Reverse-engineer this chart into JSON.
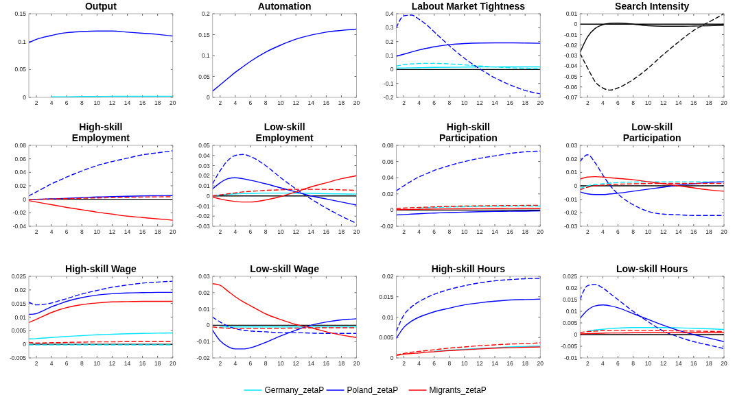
{
  "chart_data": [
    {
      "type": "line",
      "title": "Output",
      "x": [
        1,
        2,
        3,
        4,
        5,
        6,
        8,
        10,
        12,
        14,
        16,
        18,
        20
      ],
      "xlim": [
        1,
        20
      ],
      "xticks": [
        2,
        4,
        6,
        8,
        10,
        12,
        14,
        16,
        18,
        20
      ],
      "ylim": [
        0,
        0.15
      ],
      "yticks": [
        0,
        0.05,
        0.1,
        0.15
      ],
      "grid": false,
      "series": [
        {
          "color": "#00e5ff",
          "line_style": "solid",
          "values": [
            null,
            null,
            null,
            0.001,
            0.001,
            0.001,
            0.0015,
            0.0015,
            0.002,
            0.002,
            0.002,
            0.002,
            0.002
          ]
        },
        {
          "color": "#0000ff",
          "line_style": "solid",
          "values": [
            0.098,
            0.104,
            0.108,
            0.111,
            0.114,
            0.116,
            0.118,
            0.119,
            0.119,
            0.117,
            0.115,
            0.113,
            0.11
          ]
        }
      ]
    },
    {
      "type": "line",
      "title": "Automation",
      "x": [
        1,
        2,
        3,
        4,
        5,
        6,
        8,
        10,
        12,
        14,
        16,
        18,
        20
      ],
      "xlim": [
        1,
        20
      ],
      "xticks": [
        2,
        4,
        6,
        8,
        10,
        12,
        14,
        16,
        18,
        20
      ],
      "ylim": [
        0,
        0.2
      ],
      "yticks": [
        0,
        0.05,
        0.1,
        0.15,
        0.2
      ],
      "grid": false,
      "series": [
        {
          "color": "#0000ff",
          "line_style": "solid",
          "values": [
            0.015,
            0.03,
            0.045,
            0.06,
            0.073,
            0.086,
            0.108,
            0.125,
            0.139,
            0.149,
            0.156,
            0.16,
            0.163
          ]
        }
      ]
    },
    {
      "type": "line",
      "title": "Labout Market Tightness",
      "x": [
        1,
        2,
        3,
        4,
        5,
        6,
        8,
        10,
        12,
        14,
        16,
        18,
        20
      ],
      "xlim": [
        1,
        20
      ],
      "xticks": [
        2,
        4,
        6,
        8,
        10,
        12,
        14,
        16,
        18,
        20
      ],
      "ylim": [
        -0.2,
        0.4
      ],
      "yticks": [
        -0.2,
        -0.1,
        0,
        0.1,
        0.2,
        0.3,
        0.4
      ],
      "grid": false,
      "ref_lines": [
        {
          "axis": "y",
          "value": 0,
          "color": "#000000"
        }
      ],
      "series": [
        {
          "color": "#00e5ff",
          "line_style": "solid",
          "values": [
            0.01,
            0.011,
            0.012,
            0.013,
            0.014,
            0.015,
            0.016,
            0.017,
            0.018,
            0.018,
            0.019,
            0.019,
            0.019
          ]
        },
        {
          "color": "#00e5ff",
          "line_style": "dashed",
          "values": [
            0.025,
            0.035,
            0.04,
            0.043,
            0.044,
            0.044,
            0.04,
            0.033,
            0.025,
            0.018,
            0.013,
            0.009,
            0.006
          ]
        },
        {
          "color": "#0000ff",
          "line_style": "solid",
          "values": [
            0.095,
            0.11,
            0.125,
            0.14,
            0.152,
            0.163,
            0.178,
            0.186,
            0.19,
            0.191,
            0.191,
            0.19,
            0.188
          ]
        },
        {
          "color": "#0000ff",
          "line_style": "dashed",
          "values": [
            0.3,
            0.385,
            0.39,
            0.36,
            0.32,
            0.27,
            0.17,
            0.08,
            0.005,
            -0.06,
            -0.11,
            -0.15,
            -0.175
          ]
        }
      ]
    },
    {
      "type": "line",
      "title": "Search Intensity",
      "x": [
        1,
        2,
        3,
        4,
        5,
        6,
        8,
        10,
        12,
        14,
        16,
        18,
        20
      ],
      "xlim": [
        1,
        20
      ],
      "xticks": [
        2,
        4,
        6,
        8,
        10,
        12,
        14,
        16,
        18,
        20
      ],
      "ylim": [
        -0.07,
        0.01
      ],
      "yticks": [
        -0.07,
        -0.06,
        -0.05,
        -0.04,
        -0.03,
        -0.02,
        -0.01,
        0,
        0.01
      ],
      "grid": false,
      "ref_lines": [
        {
          "axis": "y",
          "value": 0,
          "color": "#000000"
        }
      ],
      "series": [
        {
          "color": "#000000",
          "line_style": "solid",
          "values": [
            -0.027,
            -0.012,
            -0.004,
            -0.0005,
            0.0008,
            0.001,
            0,
            -0.0015,
            -0.002,
            -0.002,
            -0.0018,
            -0.0015,
            -0.001
          ]
        },
        {
          "color": "#000000",
          "line_style": "dashed",
          "values": [
            -0.028,
            -0.042,
            -0.055,
            -0.061,
            -0.063,
            -0.061,
            -0.053,
            -0.042,
            -0.029,
            -0.017,
            -0.006,
            0.002,
            0.01
          ]
        }
      ]
    },
    {
      "type": "line",
      "title": "High-skill\nEmployment",
      "x": [
        1,
        2,
        3,
        4,
        5,
        6,
        8,
        10,
        12,
        14,
        16,
        18,
        20
      ],
      "xlim": [
        1,
        20
      ],
      "xticks": [
        2,
        4,
        6,
        8,
        10,
        12,
        14,
        16,
        18,
        20
      ],
      "ylim": [
        -0.04,
        0.08
      ],
      "yticks": [
        -0.04,
        -0.02,
        0,
        0.02,
        0.04,
        0.06,
        0.08
      ],
      "grid": false,
      "ref_lines": [
        {
          "axis": "y",
          "value": 0,
          "color": "#000000"
        }
      ],
      "series": [
        {
          "color": "#0000ff",
          "line_style": "solid",
          "values": [
            0,
            0,
            0.0003,
            0.0007,
            0.001,
            0.0015,
            0.0025,
            0.0035,
            0.004,
            0.0045,
            0.005,
            0.0053,
            0.0055
          ]
        },
        {
          "color": "#0000ff",
          "line_style": "dashed",
          "values": [
            0.005,
            0.011,
            0.017,
            0.023,
            0.028,
            0.033,
            0.042,
            0.05,
            0.056,
            0.061,
            0.066,
            0.069,
            0.072
          ]
        },
        {
          "color": "#ff0000",
          "line_style": "solid",
          "values": [
            -0.002,
            -0.004,
            -0.006,
            -0.008,
            -0.01,
            -0.012,
            -0.0155,
            -0.019,
            -0.022,
            -0.025,
            -0.027,
            -0.029,
            -0.031
          ]
        },
        {
          "color": "#ff0000",
          "line_style": "dashed",
          "values": [
            0,
            0,
            0.0003,
            0.0005,
            0.0008,
            0.001,
            0.0015,
            0.002,
            0.0025,
            0.003,
            0.0033,
            0.0036,
            0.0038
          ]
        }
      ]
    },
    {
      "type": "line",
      "title": "Low-skill\nEmployment",
      "x": [
        1,
        2,
        3,
        4,
        5,
        6,
        8,
        10,
        12,
        14,
        16,
        18,
        20
      ],
      "xlim": [
        1,
        20
      ],
      "xticks": [
        2,
        4,
        6,
        8,
        10,
        12,
        14,
        16,
        18,
        20
      ],
      "ylim": [
        -0.03,
        0.05
      ],
      "yticks": [
        -0.03,
        -0.02,
        -0.01,
        0,
        0.01,
        0.02,
        0.03,
        0.04,
        0.05
      ],
      "grid": false,
      "ref_lines": [
        {
          "axis": "y",
          "value": 0,
          "color": "#000000"
        }
      ],
      "series": [
        {
          "color": "#00e5ff",
          "line_style": "solid",
          "values": [
            0,
            0.0008,
            0.0015,
            0.002,
            0.0023,
            0.0025,
            0.0028,
            0.0028,
            0.0027,
            0.0025,
            0.0022,
            0.002,
            0.0018
          ]
        },
        {
          "color": "#0000ff",
          "line_style": "solid",
          "values": [
            0.007,
            0.013,
            0.017,
            0.018,
            0.017,
            0.0155,
            0.012,
            0.008,
            0.004,
            0,
            -0.003,
            -0.006,
            -0.009
          ]
        },
        {
          "color": "#0000ff",
          "line_style": "dashed",
          "values": [
            0.012,
            0.025,
            0.035,
            0.04,
            0.041,
            0.039,
            0.03,
            0.018,
            0.007,
            -0.003,
            -0.012,
            -0.02,
            -0.027
          ]
        },
        {
          "color": "#ff0000",
          "line_style": "solid",
          "values": [
            -0.001,
            -0.003,
            -0.0045,
            -0.0055,
            -0.006,
            -0.006,
            -0.004,
            -0.0005,
            0.004,
            0.009,
            0.013,
            0.017,
            0.02
          ]
        },
        {
          "color": "#ff0000",
          "line_style": "dashed",
          "values": [
            0,
            0.001,
            0.002,
            0.003,
            0.004,
            0.0045,
            0.0055,
            0.006,
            0.0065,
            0.0065,
            0.0065,
            0.006,
            0.0055
          ]
        }
      ]
    },
    {
      "type": "line",
      "title": "High-skill\nParticipation",
      "x": [
        1,
        2,
        3,
        4,
        5,
        6,
        8,
        10,
        12,
        14,
        16,
        18,
        20
      ],
      "xlim": [
        1,
        20
      ],
      "xticks": [
        2,
        4,
        6,
        8,
        10,
        12,
        14,
        16,
        18,
        20
      ],
      "ylim": [
        -0.02,
        0.08
      ],
      "yticks": [
        -0.02,
        0,
        0.02,
        0.04,
        0.06,
        0.08
      ],
      "grid": false,
      "ref_lines": [
        {
          "axis": "y",
          "value": 0,
          "color": "#000000"
        }
      ],
      "series": [
        {
          "color": "#00e5ff",
          "line_style": "dashed",
          "values": [
            null,
            null,
            null,
            0.0025,
            0.003,
            0.0033,
            0.0038,
            0.0042,
            0.0045,
            0.0047,
            0.0049,
            0.005,
            0.005
          ]
        },
        {
          "color": "#0000ff",
          "line_style": "solid",
          "values": [
            -0.006,
            -0.0055,
            -0.005,
            -0.0045,
            -0.004,
            -0.0037,
            -0.003,
            -0.0025,
            -0.002,
            -0.0017,
            -0.0015,
            -0.0013,
            -0.001
          ]
        },
        {
          "color": "#0000ff",
          "line_style": "dashed",
          "values": [
            0.024,
            0.03,
            0.036,
            0.041,
            0.045,
            0.049,
            0.055,
            0.06,
            0.064,
            0.067,
            0.07,
            0.072,
            0.073
          ]
        },
        {
          "color": "#ff0000",
          "line_style": "solid",
          "values": [
            0.0005,
            0.0007,
            0.0009,
            0.001,
            0.0012,
            0.0013,
            0.0015,
            0.0016,
            0.0017,
            0.0018,
            0.0019,
            0.002,
            0.002
          ]
        },
        {
          "color": "#ff0000",
          "line_style": "dashed",
          "values": [
            0.002,
            0.0025,
            0.003,
            0.0033,
            0.0036,
            0.004,
            0.0045,
            0.005,
            0.0052,
            0.0055,
            0.0057,
            0.0058,
            0.006
          ]
        }
      ]
    },
    {
      "type": "line",
      "title": "Low-skill\nParticipation",
      "x": [
        1,
        2,
        3,
        4,
        5,
        6,
        8,
        10,
        12,
        14,
        16,
        18,
        20
      ],
      "xlim": [
        1,
        20
      ],
      "xticks": [
        2,
        4,
        6,
        8,
        10,
        12,
        14,
        16,
        18,
        20
      ],
      "ylim": [
        -0.03,
        0.03
      ],
      "yticks": [
        -0.03,
        -0.02,
        -0.01,
        0,
        0.01,
        0.02,
        0.03
      ],
      "grid": false,
      "ref_lines": [
        {
          "axis": "y",
          "value": 0,
          "color": "#000000"
        }
      ],
      "series": [
        {
          "color": "#00e5ff",
          "line_style": "dashed",
          "values": [
            -0.002,
            0,
            0.001,
            0.0015,
            0.002,
            0.0025,
            0.0028,
            0.003,
            0.003,
            0.003,
            0.003,
            0.003,
            0.003
          ]
        },
        {
          "color": "#0000ff",
          "line_style": "solid",
          "values": [
            -0.0045,
            -0.006,
            -0.0065,
            -0.0065,
            -0.006,
            -0.0055,
            -0.004,
            -0.0025,
            -0.001,
            0.0005,
            0.0015,
            0.0025,
            0.003
          ]
        },
        {
          "color": "#0000ff",
          "line_style": "dashed",
          "values": [
            0.018,
            0.023,
            0.017,
            0.008,
            0,
            -0.006,
            -0.014,
            -0.019,
            -0.021,
            -0.0215,
            -0.022,
            -0.022,
            -0.022
          ]
        },
        {
          "color": "#ff0000",
          "line_style": "solid",
          "values": [
            0.005,
            0.0065,
            0.0068,
            0.0065,
            0.006,
            0.0055,
            0.0045,
            0.003,
            0.0015,
            0,
            -0.0015,
            -0.003,
            -0.004
          ]
        },
        {
          "color": "#ff0000",
          "line_style": "dashed",
          "values": [
            -0.003,
            -0.001,
            0,
            0.0005,
            0.001,
            0.0012,
            0.0015,
            0.0017,
            0.0018,
            0.0018,
            0.0018,
            0.0018,
            0.0018
          ]
        }
      ]
    },
    {
      "type": "line",
      "title": "High-skill Wage",
      "x": [
        1,
        2,
        3,
        4,
        5,
        6,
        8,
        10,
        12,
        14,
        16,
        18,
        20
      ],
      "xlim": [
        1,
        20
      ],
      "xticks": [
        2,
        4,
        6,
        8,
        10,
        12,
        14,
        16,
        18,
        20
      ],
      "ylim": [
        -0.005,
        0.025
      ],
      "yticks": [
        -0.005,
        0,
        0.005,
        0.01,
        0.015,
        0.02,
        0.025
      ],
      "grid": false,
      "ref_lines": [
        {
          "axis": "y",
          "value": 0,
          "color": "#000000"
        }
      ],
      "series": [
        {
          "color": "#00e5ff",
          "line_style": "solid",
          "values": [
            0.002,
            0.0021,
            0.0023,
            0.0025,
            0.0027,
            0.0029,
            0.0032,
            0.0035,
            0.0037,
            0.0039,
            0.004,
            0.0041,
            0.0042
          ]
        },
        {
          "color": "#00e5ff",
          "line_style": "dashed",
          "values": [
            -0.0002,
            -0.0002,
            -0.0002,
            -0.0002,
            -0.0002,
            -0.0002,
            -0.0002,
            -0.0002,
            -0.0002,
            -0.0002,
            -0.0002,
            -0.0002,
            -0.0002
          ]
        },
        {
          "color": "#0000ff",
          "line_style": "solid",
          "values": [
            0.011,
            0.0113,
            0.0125,
            0.0138,
            0.0148,
            0.0158,
            0.0172,
            0.0181,
            0.0186,
            0.0189,
            0.019,
            0.0191,
            0.0191
          ]
        },
        {
          "color": "#0000ff",
          "line_style": "dashed",
          "values": [
            0.0155,
            0.0145,
            0.0147,
            0.0152,
            0.016,
            0.0168,
            0.0185,
            0.0198,
            0.021,
            0.0218,
            0.0225,
            0.0229,
            0.0232
          ]
        },
        {
          "color": "#ff0000",
          "line_style": "solid",
          "values": [
            0.008,
            0.0092,
            0.0105,
            0.0117,
            0.0127,
            0.0135,
            0.0146,
            0.0152,
            0.0156,
            0.0157,
            0.0158,
            0.0158,
            0.0158
          ]
        },
        {
          "color": "#ff0000",
          "line_style": "dashed",
          "values": [
            0.0007,
            0.0005,
            0.0005,
            0.0006,
            0.0006,
            0.0007,
            0.0008,
            0.0009,
            0.0009,
            0.001,
            0.001,
            0.001,
            0.001
          ]
        }
      ]
    },
    {
      "type": "line",
      "title": "Low-skill Wage",
      "x": [
        1,
        2,
        3,
        4,
        5,
        6,
        8,
        10,
        12,
        14,
        16,
        18,
        20
      ],
      "xlim": [
        1,
        20
      ],
      "xticks": [
        2,
        4,
        6,
        8,
        10,
        12,
        14,
        16,
        18,
        20
      ],
      "ylim": [
        -0.02,
        0.03
      ],
      "yticks": [
        -0.02,
        -0.01,
        0,
        0.01,
        0.02,
        0.03
      ],
      "grid": false,
      "ref_lines": [
        {
          "axis": "y",
          "value": 0,
          "color": "#000000"
        }
      ],
      "series": [
        {
          "color": "#00e5ff",
          "line_style": "solid",
          "values": [
            null,
            -0.001,
            -0.001,
            -0.001,
            -0.001,
            -0.001,
            -0.001,
            -0.001,
            -0.001,
            -0.001,
            -0.001,
            -0.001,
            -0.001
          ]
        },
        {
          "color": "#0000ff",
          "line_style": "solid",
          "values": [
            -0.003,
            -0.0095,
            -0.013,
            -0.0145,
            -0.0145,
            -0.0138,
            -0.0105,
            -0.0065,
            -0.003,
            0,
            0.002,
            0.0033,
            0.004
          ]
        },
        {
          "color": "#0000ff",
          "line_style": "dashed",
          "values": [
            0.005,
            0.002,
            -0.0005,
            -0.002,
            -0.003,
            -0.0035,
            -0.004,
            -0.0045,
            -0.0045,
            -0.0048,
            -0.005,
            -0.005,
            -0.005
          ]
        },
        {
          "color": "#ff0000",
          "line_style": "solid",
          "values": [
            0.0255,
            0.0245,
            0.021,
            0.0175,
            0.0145,
            0.012,
            0.007,
            0.0035,
            0.0005,
            -0.0015,
            -0.004,
            -0.006,
            -0.0075
          ]
        },
        {
          "color": "#ff0000",
          "line_style": "dashed",
          "values": [
            -0.001,
            -0.0015,
            -0.0018,
            -0.002,
            -0.002,
            -0.002,
            -0.002,
            -0.0018,
            -0.0017,
            -0.0016,
            -0.0015,
            -0.0015,
            -0.0015
          ]
        }
      ]
    },
    {
      "type": "line",
      "title": "High-skill Hours",
      "x": [
        1,
        2,
        3,
        4,
        5,
        6,
        8,
        10,
        12,
        14,
        16,
        18,
        20
      ],
      "xlim": [
        1,
        20
      ],
      "xticks": [
        2,
        4,
        6,
        8,
        10,
        12,
        14,
        16,
        18,
        20
      ],
      "ylim": [
        0,
        0.02
      ],
      "yticks": [
        0,
        0.005,
        0.01,
        0.015,
        0.02
      ],
      "grid": false,
      "series": [
        {
          "color": "#00e5ff",
          "line_style": "solid",
          "values": [
            null,
            null,
            null,
            null,
            null,
            0.0016,
            0.0019,
            0.0021,
            0.0023,
            0.0025,
            0.0027,
            0.0028,
            0.0029
          ]
        },
        {
          "color": "#0000ff",
          "line_style": "solid",
          "values": [
            0.0048,
            0.0075,
            0.009,
            0.01,
            0.0107,
            0.0113,
            0.0122,
            0.013,
            0.0135,
            0.0139,
            0.0142,
            0.0143,
            0.0144
          ]
        },
        {
          "color": "#0000ff",
          "line_style": "dashed",
          "values": [
            0.0065,
            0.0105,
            0.0125,
            0.0138,
            0.0148,
            0.0156,
            0.0168,
            0.0177,
            0.0184,
            0.0189,
            0.0192,
            0.0194,
            0.0195
          ]
        },
        {
          "color": "#ff0000",
          "line_style": "solid",
          "values": [
            0.0006,
            0.0009,
            0.0011,
            0.0012,
            0.0014,
            0.0015,
            0.0018,
            0.002,
            0.0022,
            0.0024,
            0.0025,
            0.0026,
            0.0027
          ]
        },
        {
          "color": "#ff0000",
          "line_style": "dashed",
          "values": [
            0.0007,
            0.0011,
            0.0014,
            0.0016,
            0.0018,
            0.002,
            0.0024,
            0.0027,
            0.003,
            0.0032,
            0.0034,
            0.0035,
            0.0037
          ]
        }
      ]
    },
    {
      "type": "line",
      "title": "Low-skill Hours",
      "x": [
        1,
        2,
        3,
        4,
        5,
        6,
        8,
        10,
        12,
        14,
        16,
        18,
        20
      ],
      "xlim": [
        1,
        20
      ],
      "xticks": [
        2,
        4,
        6,
        8,
        10,
        12,
        14,
        16,
        18,
        20
      ],
      "ylim": [
        -0.01,
        0.025
      ],
      "yticks": [
        -0.01,
        -0.005,
        0,
        0.005,
        0.01,
        0.015,
        0.02,
        0.025
      ],
      "grid": false,
      "legend": "bottom",
      "ref_lines": [
        {
          "axis": "y",
          "value": 0,
          "color": "#000000"
        }
      ],
      "series": [
        {
          "name": "Germany_zetaP",
          "color": "#00e5ff",
          "line_style": "solid",
          "values": [
            null,
            0.0015,
            0.002,
            0.0023,
            0.0026,
            0.0028,
            0.003,
            0.003,
            0.003,
            0.0029,
            0.0027,
            0.0025,
            0.0022
          ]
        },
        {
          "name": "Poland_zetaP",
          "color": "#0000ff",
          "line_style": "solid",
          "values": [
            0.007,
            0.0105,
            0.0123,
            0.0127,
            0.0123,
            0.0115,
            0.009,
            0.0065,
            0.004,
            0.0018,
            0,
            -0.0015,
            -0.003
          ]
        },
        {
          "color": "#0000ff",
          "line_style": "dashed",
          "values": [
            0.015,
            0.021,
            0.0215,
            0.02,
            0.0175,
            0.015,
            0.01,
            0.0055,
            0.0015,
            -0.001,
            -0.003,
            -0.0045,
            -0.006
          ]
        },
        {
          "name": "Migrants_zetaP",
          "color": "#ff0000",
          "line_style": "solid",
          "values": [
            0.0003,
            0.0004,
            0.0005,
            0.0006,
            0.0007,
            0.0007,
            0.0008,
            0.0008,
            0.0008,
            0.0008,
            0.0008,
            0.0008,
            0.0008
          ]
        },
        {
          "color": "#ff0000",
          "line_style": "dashed",
          "values": [
            0.0009,
            0.0013,
            0.0015,
            0.0017,
            0.0018,
            0.0018,
            0.0018,
            0.0018,
            0.0017,
            0.0016,
            0.0015,
            0.0014,
            0.0013
          ]
        }
      ]
    }
  ]
}
